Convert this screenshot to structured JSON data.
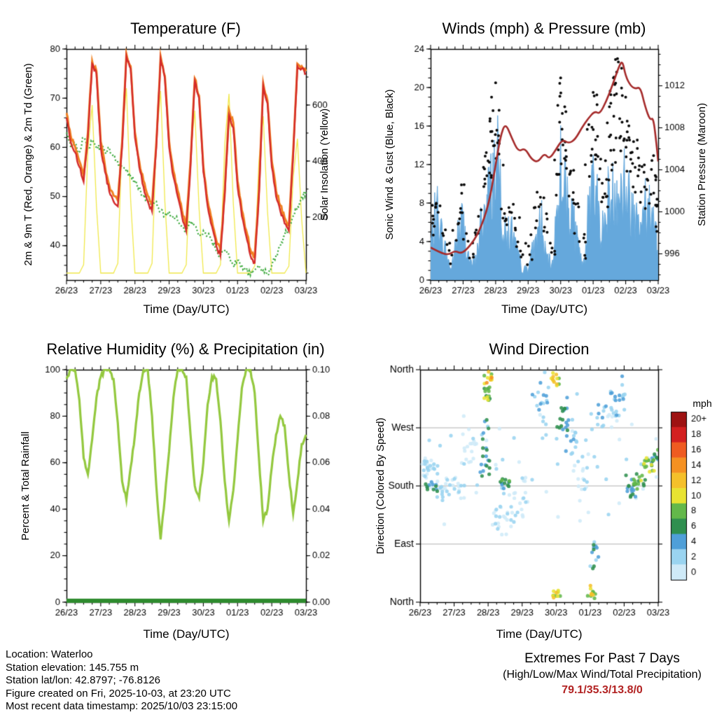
{
  "time_axis": {
    "xlabel": "Time (Day/UTC)",
    "labels": [
      "26/23",
      "27/23",
      "28/23",
      "29/23",
      "30/23",
      "01/23",
      "02/23",
      "03/23"
    ],
    "t_min": 0,
    "t_max": 7,
    "t_step_days": 0.125
  },
  "footer": {
    "lines": [
      "Location: Waterloo",
      "Station elevation: 145.755 m",
      "Station lat/lon: 42.8797; -76.8126",
      "Figure created on Fri, 2025-10-03, at 23:20 UTC",
      "Most recent data timestamp: 2025/10/03 23:15:00"
    ]
  },
  "extremes": {
    "title": "Extremes For Past 7 Days",
    "subtitle": "(High/Low/Max Wind/Total Precipitation)",
    "values": "79.1/35.3/13.8/0",
    "color": "#b22222"
  },
  "chart_data": [
    {
      "type": "line",
      "title": "Temperature (F)",
      "xlabel": "Time (Day/UTC)",
      "ylabel_left": "2m & 9m T (Red, Orange) & 2m Td (Green)",
      "ylabel_right": "Solar Insolation (Yellow)",
      "ylim_left": [
        33,
        80
      ],
      "ytick_vals_left": [
        40,
        50,
        60,
        70,
        80
      ],
      "yticks_left": [
        "40",
        "50",
        "60",
        "70",
        "80"
      ],
      "y_minor_left": 2,
      "ylim_right": [
        -25,
        800
      ],
      "ytick_vals_right": [
        200,
        400,
        600
      ],
      "yticks_right": [
        "200",
        "400",
        "600"
      ],
      "y_minor_right": 100,
      "series": [
        {
          "name": "2m T",
          "color": "#d42a2a",
          "values": [
            66,
            61,
            59,
            56,
            53,
            62,
            77,
            75,
            60,
            55,
            51,
            49,
            48,
            60,
            78.5,
            76,
            62,
            56,
            52,
            49,
            47,
            60,
            78,
            74,
            60,
            54,
            50,
            46,
            43,
            56,
            73.5,
            70,
            55,
            48,
            44,
            40,
            38,
            50,
            66.5,
            64,
            52,
            46,
            42,
            38,
            36.5,
            50,
            72.5,
            69,
            56,
            50,
            47,
            44.5,
            43,
            58,
            76.5,
            76,
            75
          ]
        },
        {
          "name": "9m T",
          "color": "#f08020",
          "values": [
            67,
            62.2,
            60.2,
            57.2,
            54.2,
            63,
            77.5,
            75.5,
            61.2,
            56.2,
            52.2,
            50.2,
            49.2,
            61,
            79,
            76.5,
            63,
            57.2,
            53.2,
            50.2,
            48.2,
            61,
            78.5,
            74.5,
            61.2,
            55.2,
            51.2,
            47.2,
            44.2,
            57.2,
            74,
            70.5,
            56.2,
            49.2,
            45.2,
            41.2,
            39.2,
            51.2,
            67.5,
            65,
            53.2,
            47.2,
            43.2,
            39.2,
            37.7,
            51.2,
            73,
            69.5,
            57.2,
            51.2,
            48.2,
            45.7,
            44.2,
            59.2,
            77,
            76.5,
            75.5
          ]
        },
        {
          "name": "2m Td",
          "color": "#3aa83a",
          "values": [
            63,
            60,
            61,
            59,
            62,
            60,
            61,
            60,
            60,
            59,
            60,
            58,
            57,
            56,
            55,
            54,
            53,
            52,
            50,
            49,
            48,
            49,
            47,
            46,
            47,
            46,
            45,
            44,
            43,
            45,
            44,
            42,
            43,
            42,
            41,
            39,
            38,
            39,
            38,
            36,
            37,
            36,
            35,
            34,
            35,
            36,
            35,
            34,
            36,
            38,
            40,
            42,
            44,
            46,
            48,
            50,
            51
          ]
        },
        {
          "name": "Solar Insolation",
          "color": "#f0e84a",
          "axis": "right",
          "values": [
            0,
            0,
            0,
            0,
            30,
            440,
            600,
            240,
            0,
            0,
            0,
            0,
            35,
            480,
            660,
            260,
            0,
            0,
            0,
            0,
            35,
            470,
            650,
            255,
            0,
            0,
            0,
            0,
            30,
            420,
            580,
            230,
            0,
            0,
            0,
            0,
            30,
            460,
            640,
            250,
            0,
            0,
            0,
            0,
            25,
            400,
            560,
            220,
            0,
            0,
            0,
            0,
            25,
            340,
            480,
            190,
            0
          ]
        }
      ]
    },
    {
      "type": "line+scatter",
      "title": "Winds (mph) & Pressure (mb)",
      "xlabel": "Time (Day/UTC)",
      "ylabel_left": "Sonic Wind & Gust (Blue, Black)",
      "ylabel_right": "Station Pressure (Maroon)",
      "ylim_left": [
        0,
        24
      ],
      "ytick_vals_left": [
        0,
        4,
        8,
        12,
        16,
        20,
        24
      ],
      "yticks_left": [
        "0",
        "4",
        "8",
        "12",
        "16",
        "20",
        "24"
      ],
      "y_minor_left": 1,
      "ylim_right": [
        993.5,
        1015.5
      ],
      "ytick_vals_right": [
        996,
        1000,
        1004,
        1008,
        1012
      ],
      "yticks_right": [
        "996",
        "1000",
        "1004",
        "1008",
        "1012"
      ],
      "y_minor_right": 1,
      "wind_speed": {
        "name": "Sonic Wind",
        "color": "#65a8dc",
        "values": [
          4,
          5.5,
          6.5,
          4,
          2.5,
          1,
          3,
          5,
          6,
          3,
          1.5,
          2,
          4,
          7,
          8,
          10,
          12,
          9,
          5,
          4,
          5,
          3,
          1.5,
          1,
          1.5,
          2.5,
          4,
          6,
          3,
          2,
          1.5,
          7,
          12,
          9,
          6.5,
          6,
          4,
          2,
          1.5,
          9,
          11,
          8,
          5,
          6,
          8,
          9,
          10,
          9,
          9,
          8,
          7,
          8,
          6,
          6.5,
          7,
          6,
          4
        ]
      },
      "wind_gust": {
        "name": "Gust",
        "color": "#0a0a0a",
        "values": [
          7,
          9,
          8,
          6,
          4,
          3,
          6,
          9,
          10,
          6,
          4,
          5,
          8,
          12,
          14,
          19,
          20.5,
          16,
          10,
          8,
          9,
          7,
          4,
          3,
          4,
          6,
          8,
          10,
          7,
          5,
          4,
          14,
          21,
          18,
          13,
          12,
          8,
          6,
          5,
          17,
          19.5,
          16,
          12,
          14,
          18,
          21,
          23,
          22,
          19,
          16,
          14,
          15,
          12,
          13,
          14,
          12,
          9
        ]
      },
      "pressure": {
        "name": "Station Pressure",
        "color": "#a52a2a",
        "points": [
          [
            0,
            996.6
          ],
          [
            0.3,
            996.1
          ],
          [
            0.55,
            995.9
          ],
          [
            0.75,
            996.3
          ],
          [
            0.95,
            996.0
          ],
          [
            1.2,
            996.7
          ],
          [
            1.5,
            998.1
          ],
          [
            1.8,
            1000.8
          ],
          [
            2.0,
            1004.5
          ],
          [
            2.15,
            1007.2
          ],
          [
            2.3,
            1008.5
          ],
          [
            2.5,
            1007.0
          ],
          [
            2.7,
            1005.7
          ],
          [
            2.9,
            1006.1
          ],
          [
            3.1,
            1005.0
          ],
          [
            3.3,
            1004.7
          ],
          [
            3.5,
            1005.6
          ],
          [
            3.65,
            1005.0
          ],
          [
            3.85,
            1005.9
          ],
          [
            4.05,
            1006.9
          ],
          [
            4.25,
            1006.5
          ],
          [
            4.45,
            1006.9
          ],
          [
            4.65,
            1008.0
          ],
          [
            4.85,
            1008.9
          ],
          [
            5.05,
            1009.6
          ],
          [
            5.2,
            1009.3
          ],
          [
            5.4,
            1010.5
          ],
          [
            5.6,
            1012.1
          ],
          [
            5.8,
            1013.9
          ],
          [
            5.9,
            1014.4
          ],
          [
            6.0,
            1012.9
          ],
          [
            6.15,
            1012.0
          ],
          [
            6.3,
            1011.7
          ],
          [
            6.45,
            1011.9
          ],
          [
            6.6,
            1010.0
          ],
          [
            6.75,
            1008.7
          ],
          [
            6.85,
            1009.0
          ],
          [
            6.95,
            1006.4
          ],
          [
            7.0,
            1004.8
          ]
        ]
      }
    },
    {
      "type": "line",
      "title": "Relative Humidity (%) & Precipitation (in)",
      "xlabel": "Time (Day/UTC)",
      "ylabel_left": "Percent & Total Rainfall",
      "ylim_left": [
        0,
        100
      ],
      "ytick_vals_left": [
        0,
        20,
        40,
        60,
        80,
        100
      ],
      "yticks_left": [
        "0",
        "20",
        "40",
        "60",
        "80",
        "100"
      ],
      "y_minor_left": 5,
      "ylim_right": [
        0,
        0.1
      ],
      "ytick_vals_right": [
        0,
        0.02,
        0.04,
        0.06,
        0.08,
        0.1
      ],
      "yticks_right": [
        "0.00",
        "0.02",
        "0.04",
        "0.06",
        "0.08",
        "0.10"
      ],
      "y_minor_right": 0.005,
      "humidity": {
        "name": "Relative Humidity",
        "color": "#93c83e",
        "values": [
          96,
          100,
          100,
          87,
          62,
          55,
          70,
          88,
          97,
          100,
          100,
          96,
          77,
          52,
          44,
          58,
          72,
          90,
          100,
          100,
          80,
          50,
          27,
          45,
          65,
          88,
          100,
          100,
          97,
          72,
          50,
          45,
          60,
          85,
          97,
          96,
          78,
          52,
          35,
          48,
          70,
          92,
          100,
          100,
          90,
          62,
          35,
          40,
          58,
          72,
          80,
          76,
          55,
          38,
          52,
          68,
          72
        ]
      },
      "rainfall": {
        "name": "Total Rainfall",
        "color": "#2e8b2e",
        "total": 0
      }
    },
    {
      "type": "scatter",
      "title": "Wind Direction",
      "xlabel": "Time (Day/UTC)",
      "ylabel_left": "Direction (Colored By Speed)",
      "categories": [
        {
          "label": "North",
          "value": 360
        },
        {
          "label": "West",
          "value": 270
        },
        {
          "label": "South",
          "value": 180
        },
        {
          "label": "East",
          "value": 90
        },
        {
          "label": "North",
          "value": 0
        }
      ],
      "palette": [
        "#cfeaf8",
        "#9ad4f0",
        "#4f9fd8",
        "#2f8f4f",
        "#63b84a",
        "#e8e332",
        "#f5c02a",
        "#f59122",
        "#ef5b21",
        "#d32020",
        "#9e1212"
      ],
      "colorbar": {
        "title": "mph",
        "labels": [
          "20+",
          "18",
          "16",
          "14",
          "12",
          "10",
          "8",
          "6",
          "4",
          "2",
          "0"
        ],
        "colors": [
          "#9e1212",
          "#d32020",
          "#ef5b21",
          "#f59122",
          "#f5c02a",
          "#e8e332",
          "#63b84a",
          "#2f8f4f",
          "#4f9fd8",
          "#9ad4f0",
          "#cfeaf8"
        ]
      },
      "clusters": [
        [
          0.0,
          0.62,
          185,
          232,
          26,
          0,
          4
        ],
        [
          0.15,
          0.52,
          170,
          190,
          12,
          5,
          8
        ],
        [
          0.5,
          1.3,
          148,
          205,
          30,
          0,
          4
        ],
        [
          1.2,
          1.7,
          200,
          290,
          16,
          0,
          3
        ],
        [
          1.75,
          2.05,
          180,
          300,
          22,
          3,
          8
        ],
        [
          1.88,
          2.1,
          295,
          360,
          16,
          6,
          11
        ],
        [
          1.95,
          2.12,
          338,
          360,
          9,
          10,
          16
        ],
        [
          2.1,
          2.7,
          90,
          180,
          22,
          0,
          4
        ],
        [
          2.35,
          2.68,
          170,
          196,
          14,
          5,
          9
        ],
        [
          2.7,
          3.3,
          95,
          210,
          20,
          0,
          3
        ],
        [
          3.3,
          3.78,
          240,
          360,
          20,
          2,
          6
        ],
        [
          3.85,
          4.1,
          332,
          360,
          12,
          8,
          14
        ],
        [
          3.88,
          4.12,
          0,
          22,
          11,
          8,
          14
        ],
        [
          4.0,
          4.35,
          252,
          335,
          16,
          4,
          8
        ],
        [
          4.28,
          4.65,
          222,
          300,
          14,
          2,
          6
        ],
        [
          4.6,
          4.95,
          140,
          245,
          14,
          0,
          4
        ],
        [
          4.92,
          5.18,
          0,
          28,
          11,
          8,
          14
        ],
        [
          4.95,
          5.3,
          40,
          120,
          12,
          3,
          8
        ],
        [
          5.2,
          5.8,
          248,
          332,
          20,
          1,
          5
        ],
        [
          5.6,
          6.12,
          278,
          352,
          16,
          2,
          6
        ],
        [
          6.05,
          6.35,
          158,
          200,
          14,
          4,
          8
        ],
        [
          6.28,
          6.62,
          172,
          202,
          16,
          6,
          11
        ],
        [
          6.55,
          6.88,
          193,
          232,
          15,
          8,
          12
        ],
        [
          6.8,
          7.0,
          208,
          242,
          10,
          5,
          9
        ],
        [
          0.05,
          6.95,
          95,
          335,
          55,
          0,
          3
        ]
      ]
    }
  ]
}
